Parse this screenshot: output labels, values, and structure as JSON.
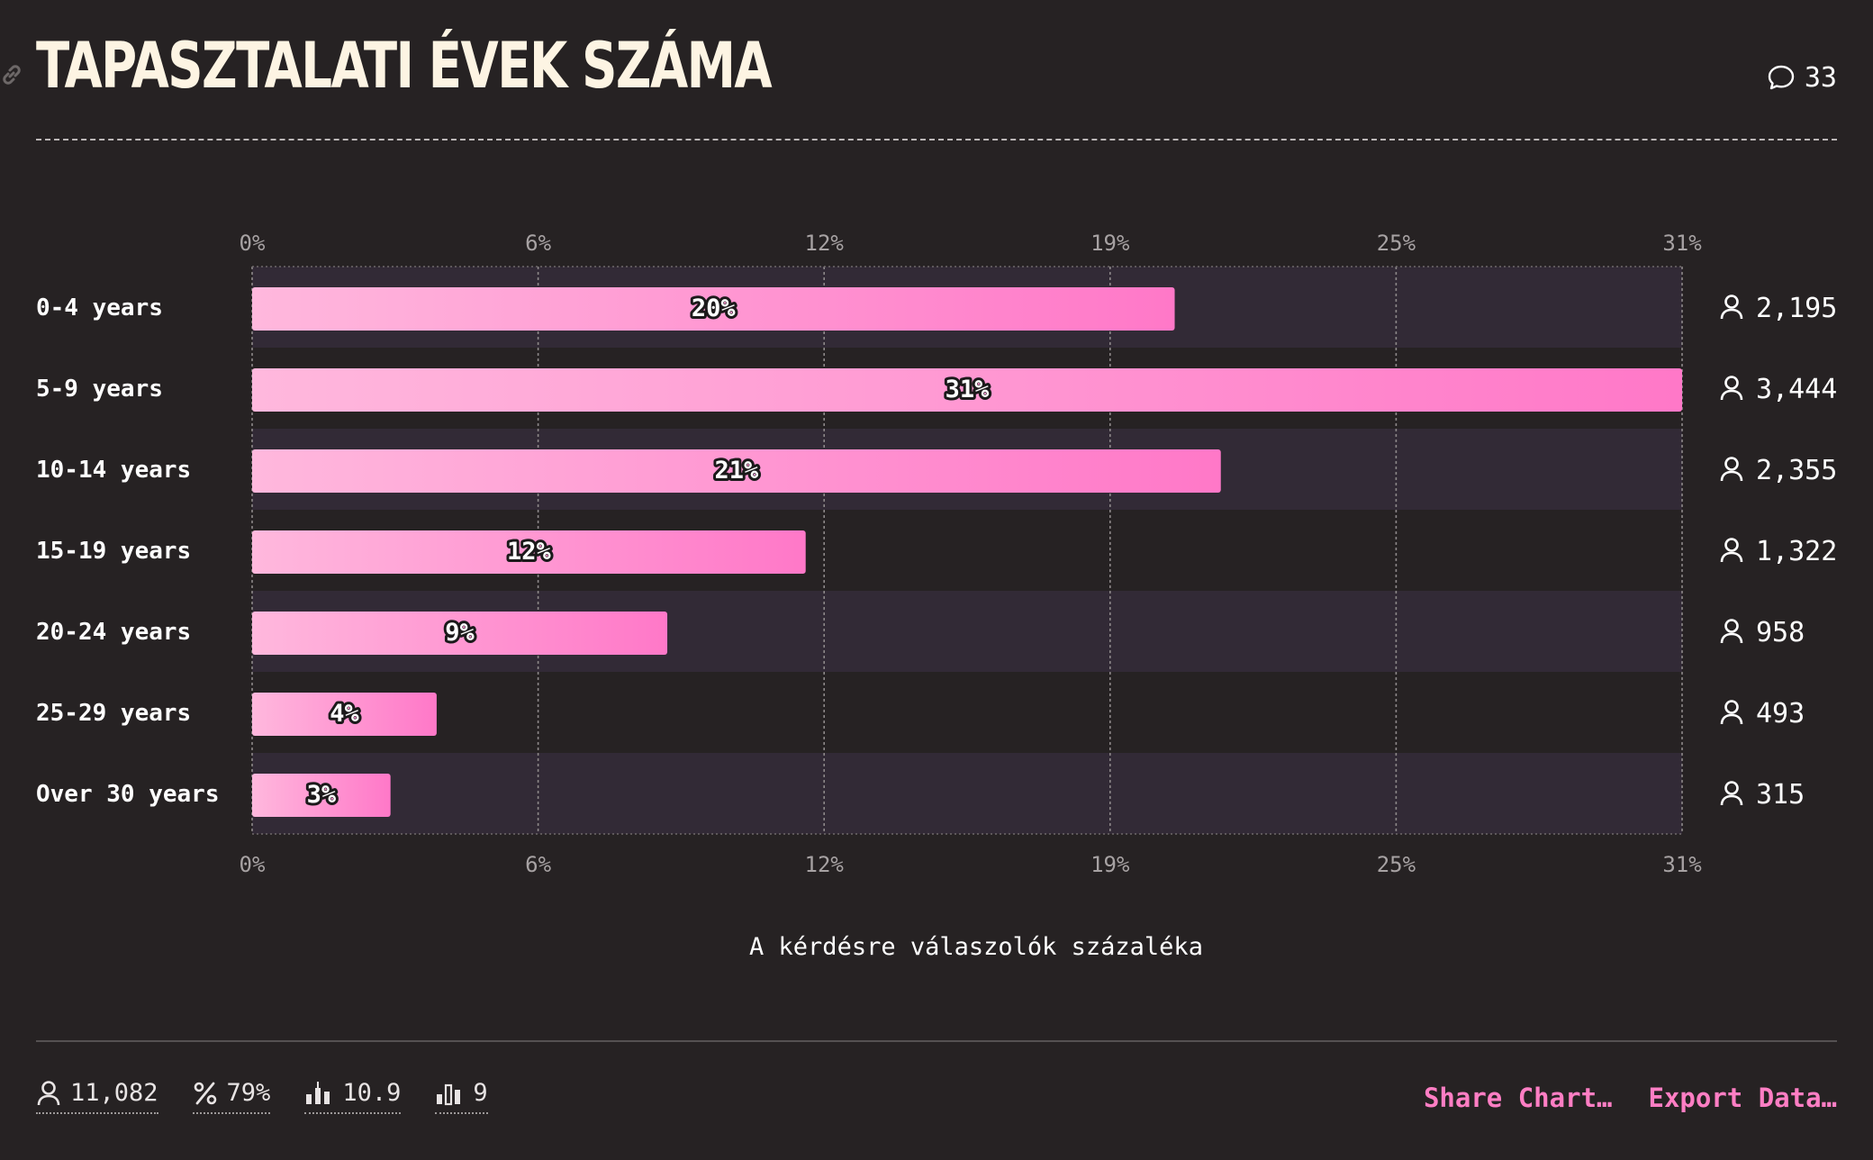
{
  "header": {
    "title": "TAPASZTALATI ÉVEK SZÁMA",
    "comment_count": "33"
  },
  "chart_data": {
    "type": "bar",
    "orientation": "horizontal",
    "categories": [
      "0-4 years",
      "5-9 years",
      "10-14 years",
      "15-19 years",
      "20-24 years",
      "25-29 years",
      "Over 30 years"
    ],
    "values": [
      20,
      31,
      21,
      12,
      9,
      4,
      3
    ],
    "value_labels": [
      "20%",
      "31%",
      "21%",
      "12%",
      "9%",
      "4%",
      "3%"
    ],
    "counts": [
      "2,195",
      "3,444",
      "2,355",
      "1,322",
      "958",
      "493",
      "315"
    ],
    "ticks": [
      "0%",
      "6%",
      "12%",
      "19%",
      "25%",
      "31%"
    ],
    "xlim": [
      0,
      31
    ],
    "xlabel": "A kérdésre válaszolók százaléka",
    "grid": true,
    "colors": {
      "bar_start": "#ffb8dd",
      "bar_end": "#ff78c8",
      "band": "#322a36",
      "background": "#262223"
    }
  },
  "footer": {
    "stats": [
      {
        "icon": "person-icon",
        "value": "11,082"
      },
      {
        "icon": "percent-icon",
        "value": "79%"
      },
      {
        "icon": "candlestick-icon",
        "value": "10.9"
      },
      {
        "icon": "bar-chart-icon",
        "value": "9"
      }
    ],
    "share_label": "Share Chart…",
    "export_label": "Export Data…"
  }
}
